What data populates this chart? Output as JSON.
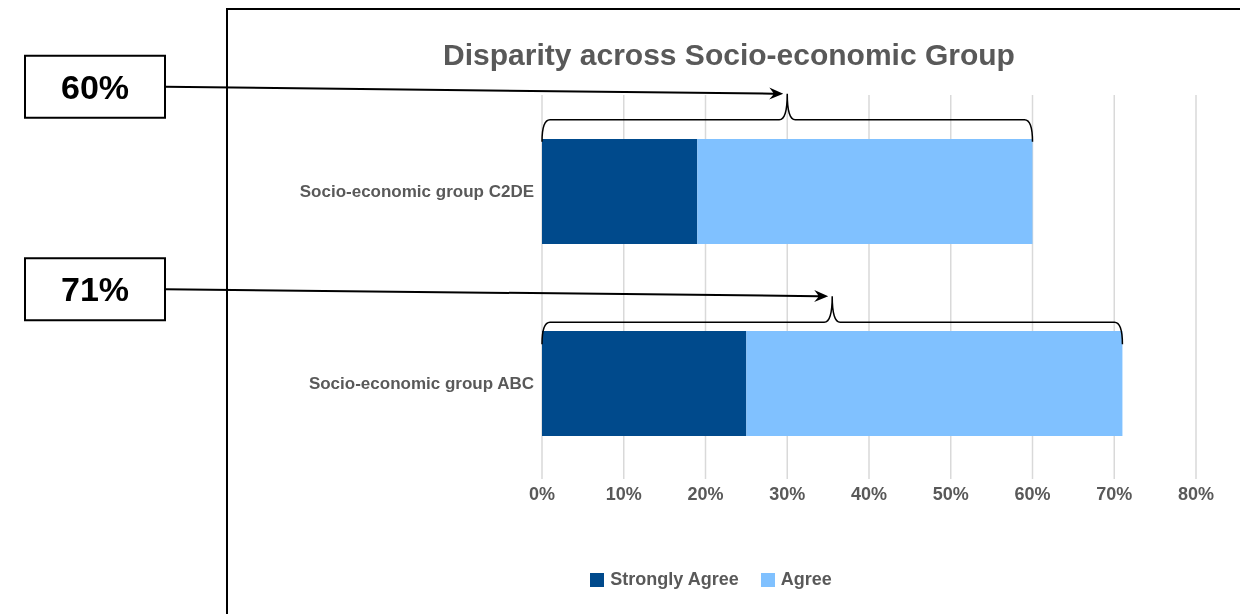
{
  "chart_data": {
    "type": "bar",
    "orientation": "horizontal",
    "stacked": true,
    "title": "Disparity across Socio-economic Group",
    "categories": [
      "Socio-economic group C2DE",
      "Socio-economic group ABC"
    ],
    "series": [
      {
        "name": "Strongly Agree",
        "color": "#004a8c",
        "values": [
          19,
          25
        ]
      },
      {
        "name": "Agree",
        "color": "#80c1ff",
        "values": [
          41,
          46
        ]
      }
    ],
    "xlim": [
      0,
      80
    ],
    "xticks": [
      {
        "value": 0,
        "label": "0%"
      },
      {
        "value": 10,
        "label": "10%"
      },
      {
        "value": 20,
        "label": "20%"
      },
      {
        "value": 30,
        "label": "30%"
      },
      {
        "value": 40,
        "label": "40%"
      },
      {
        "value": 50,
        "label": "50%"
      },
      {
        "value": 60,
        "label": "60%"
      },
      {
        "value": 70,
        "label": "70%"
      },
      {
        "value": 80,
        "label": "80%"
      }
    ],
    "grid": "x",
    "legend": "bottom",
    "annotations": [
      "60%",
      "71%"
    ]
  }
}
